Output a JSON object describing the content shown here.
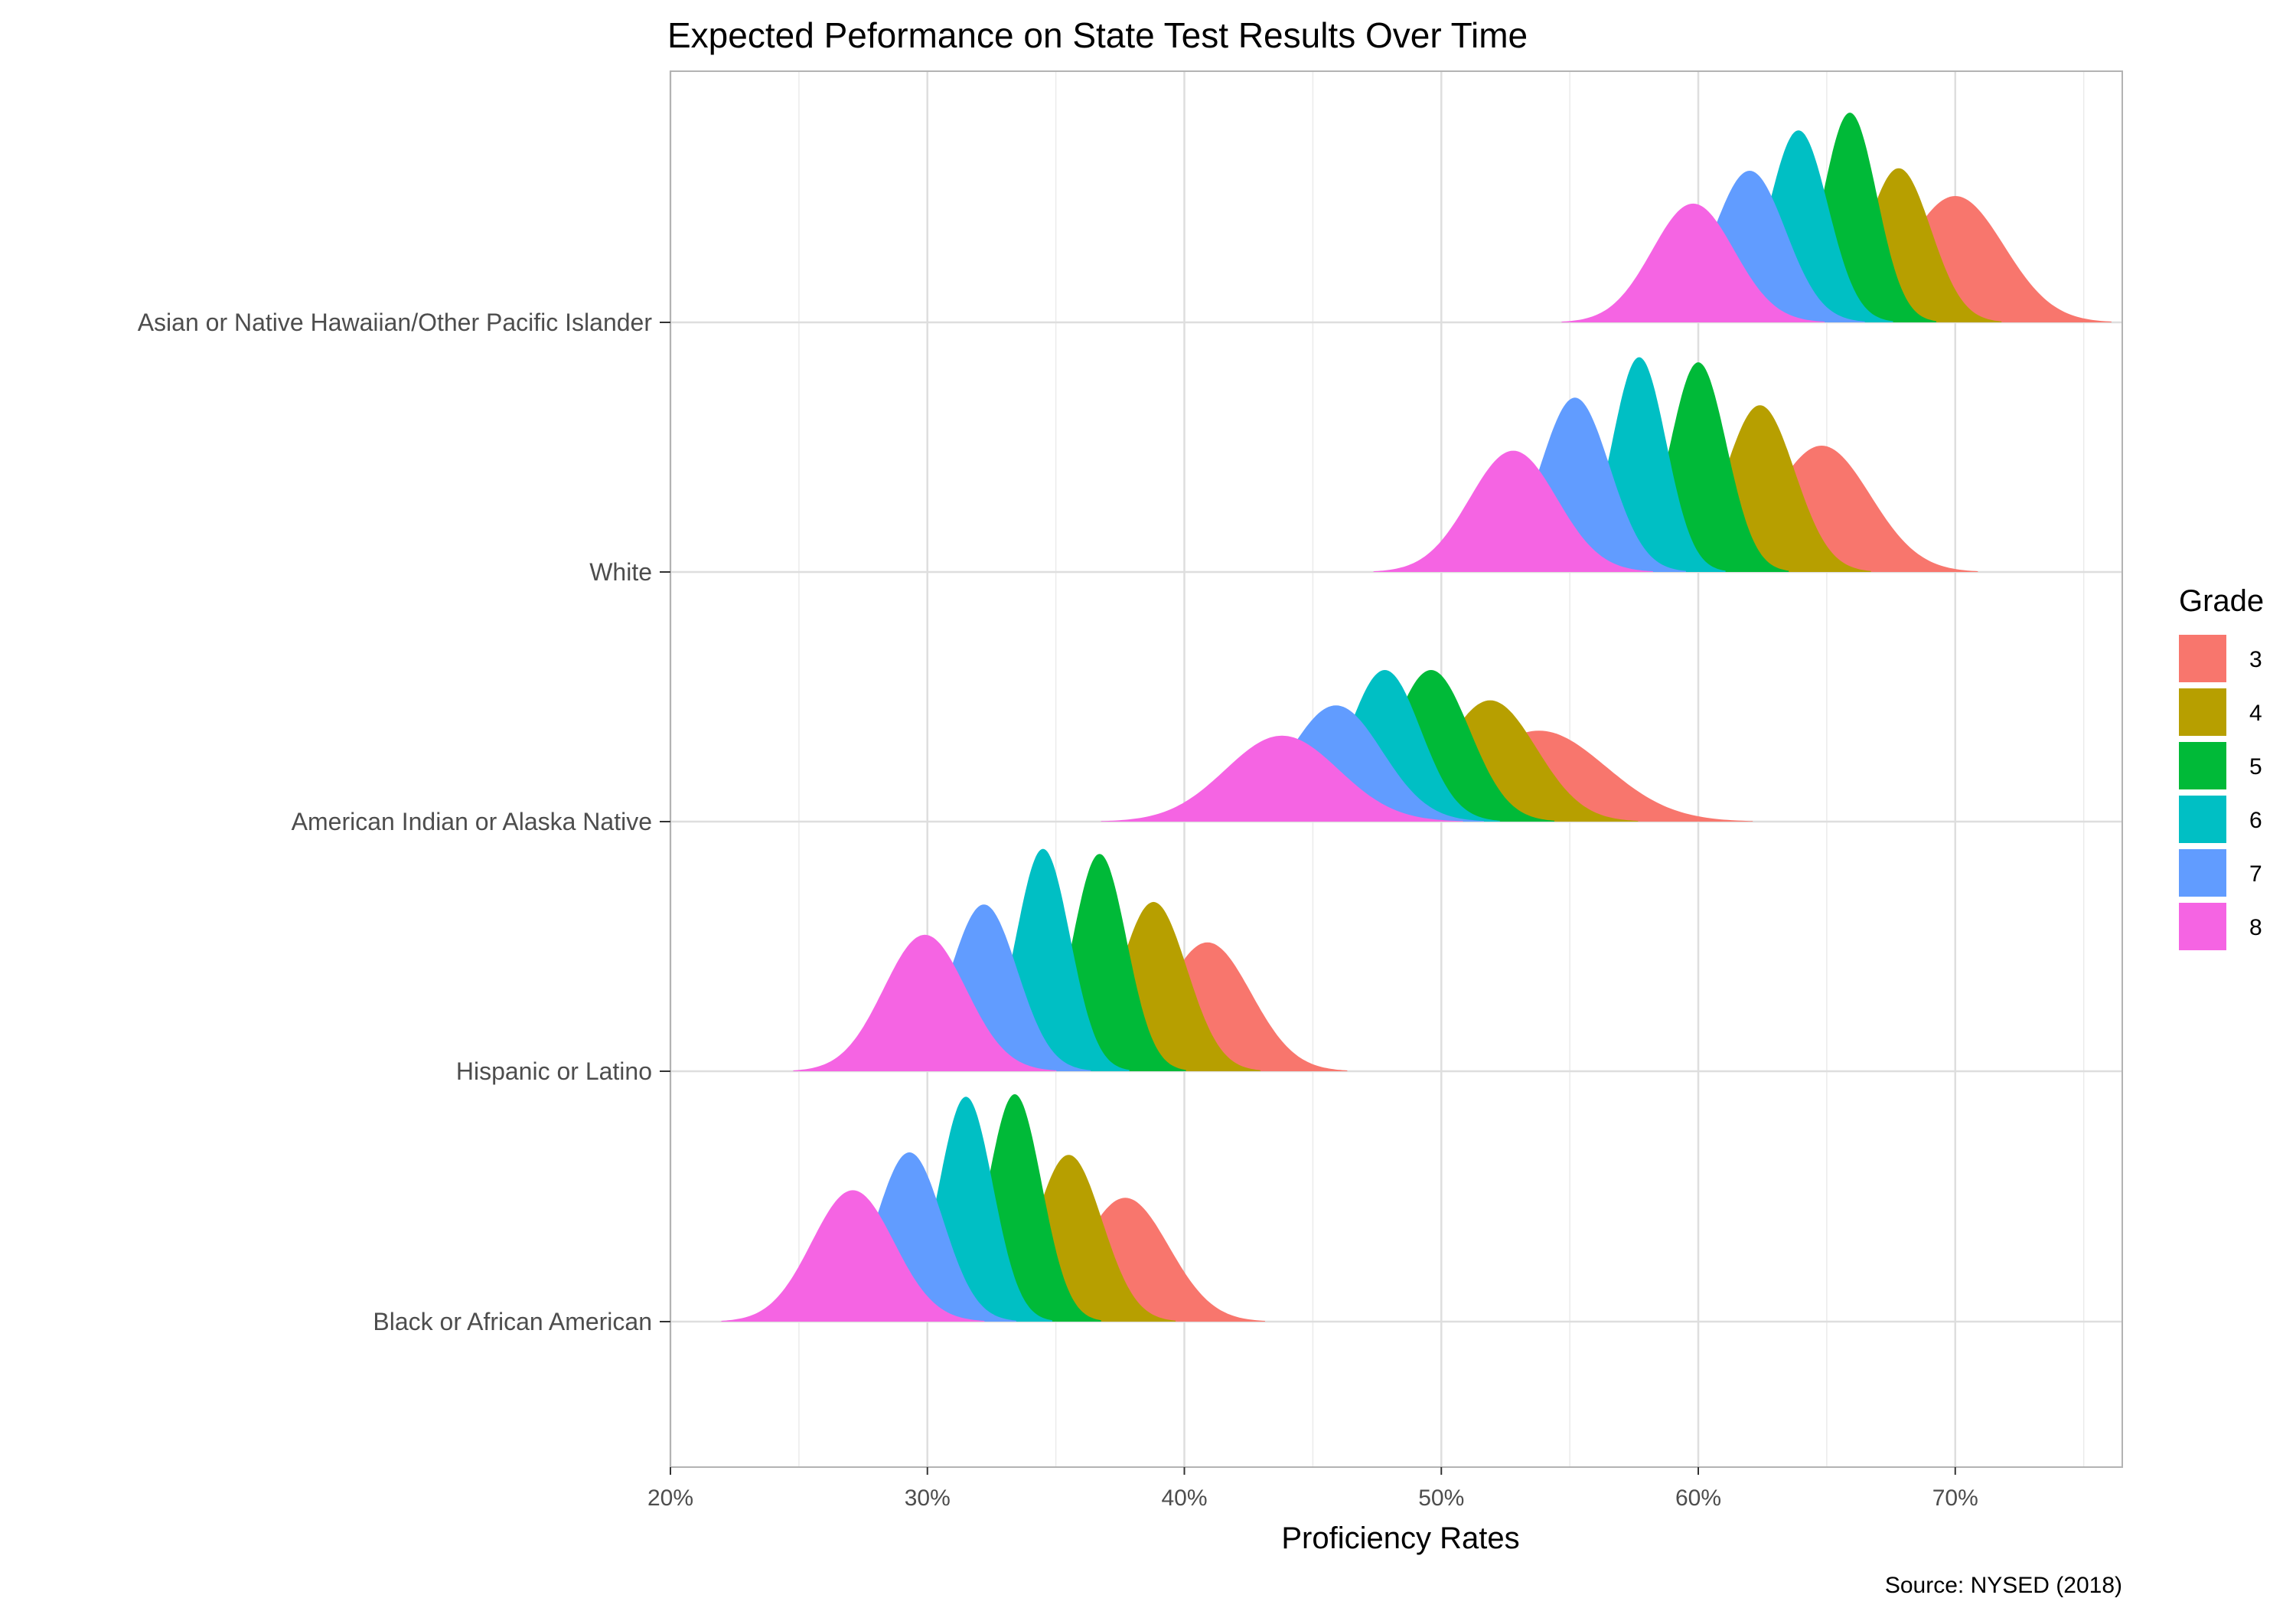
{
  "chart_data": {
    "type": "ridgeline",
    "title": "Expected Peformance on State Test Results Over Time",
    "xlabel": "Proficiency Rates",
    "ylabel": "",
    "caption": "Source: NYSED (2018)",
    "xlim": [
      20,
      76.5
    ],
    "xticks": [
      20,
      30,
      40,
      50,
      60,
      70
    ],
    "xtick_labels": [
      "20%",
      "30%",
      "40%",
      "50%",
      "60%",
      "70%"
    ],
    "grid": true,
    "legend": {
      "title": "Grade",
      "position": "right"
    },
    "grades": [
      {
        "name": "3",
        "color": "#F8766D"
      },
      {
        "name": "4",
        "color": "#B79F00"
      },
      {
        "name": "5",
        "color": "#00BA38"
      },
      {
        "name": "6",
        "color": "#00BFC4"
      },
      {
        "name": "7",
        "color": "#619CFF"
      },
      {
        "name": "8",
        "color": "#F564E3"
      }
    ],
    "categories": [
      {
        "name": "Asian or Native Hawaiian/Other Pacific Islander",
        "distributions": [
          {
            "grade": "3",
            "mean": 70.0,
            "sd": 1.9,
            "height": 0.5
          },
          {
            "grade": "4",
            "mean": 67.8,
            "sd": 1.25,
            "height": 0.61
          },
          {
            "grade": "5",
            "mean": 65.9,
            "sd": 1.05,
            "height": 0.83
          },
          {
            "grade": "6",
            "mean": 63.9,
            "sd": 1.15,
            "height": 0.76
          },
          {
            "grade": "7",
            "mean": 62.0,
            "sd": 1.4,
            "height": 0.6
          },
          {
            "grade": "8",
            "mean": 59.8,
            "sd": 1.6,
            "height": 0.47
          }
        ]
      },
      {
        "name": "White",
        "distributions": [
          {
            "grade": "3",
            "mean": 64.8,
            "sd": 1.9,
            "height": 0.5
          },
          {
            "grade": "4",
            "mean": 62.4,
            "sd": 1.35,
            "height": 0.66
          },
          {
            "grade": "5",
            "mean": 60.0,
            "sd": 1.1,
            "height": 0.83
          },
          {
            "grade": "6",
            "mean": 57.7,
            "sd": 1.05,
            "height": 0.85
          },
          {
            "grade": "7",
            "mean": 55.2,
            "sd": 1.35,
            "height": 0.69
          },
          {
            "grade": "8",
            "mean": 52.8,
            "sd": 1.7,
            "height": 0.48
          }
        ]
      },
      {
        "name": "American Indian or Alaska Native",
        "distributions": [
          {
            "grade": "3",
            "mean": 53.8,
            "sd": 2.6,
            "height": 0.36
          },
          {
            "grade": "4",
            "mean": 51.9,
            "sd": 1.8,
            "height": 0.48
          },
          {
            "grade": "5",
            "mean": 49.6,
            "sd": 1.5,
            "height": 0.6
          },
          {
            "grade": "6",
            "mean": 47.8,
            "sd": 1.4,
            "height": 0.6
          },
          {
            "grade": "7",
            "mean": 45.9,
            "sd": 1.8,
            "height": 0.46
          },
          {
            "grade": "8",
            "mean": 43.8,
            "sd": 2.2,
            "height": 0.34
          }
        ]
      },
      {
        "name": "Hispanic or Latino",
        "distributions": [
          {
            "grade": "3",
            "mean": 40.9,
            "sd": 1.7,
            "height": 0.51
          },
          {
            "grade": "4",
            "mean": 38.8,
            "sd": 1.3,
            "height": 0.67
          },
          {
            "grade": "5",
            "mean": 36.7,
            "sd": 1.05,
            "height": 0.86
          },
          {
            "grade": "6",
            "mean": 34.5,
            "sd": 1.05,
            "height": 0.88
          },
          {
            "grade": "7",
            "mean": 32.2,
            "sd": 1.3,
            "height": 0.66
          },
          {
            "grade": "8",
            "mean": 29.9,
            "sd": 1.6,
            "height": 0.54
          }
        ]
      },
      {
        "name": "Black or African American",
        "distributions": [
          {
            "grade": "3",
            "mean": 37.7,
            "sd": 1.7,
            "height": 0.49
          },
          {
            "grade": "4",
            "mean": 35.5,
            "sd": 1.3,
            "height": 0.66
          },
          {
            "grade": "5",
            "mean": 33.4,
            "sd": 1.05,
            "height": 0.9
          },
          {
            "grade": "6",
            "mean": 31.5,
            "sd": 1.05,
            "height": 0.89
          },
          {
            "grade": "7",
            "mean": 29.3,
            "sd": 1.3,
            "height": 0.67
          },
          {
            "grade": "8",
            "mean": 27.1,
            "sd": 1.6,
            "height": 0.52
          }
        ]
      }
    ]
  }
}
